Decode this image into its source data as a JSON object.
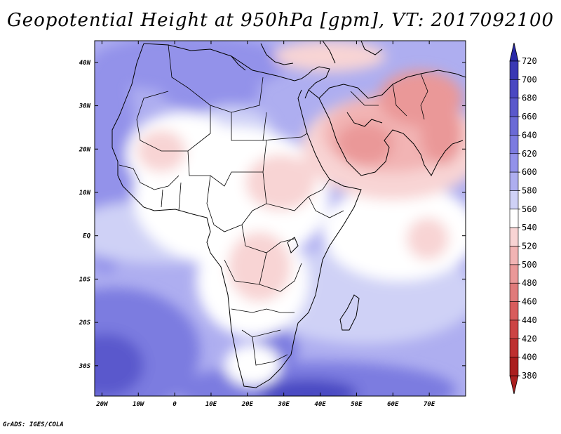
{
  "title": "Geopotential Height at 950hPa [gpm], VT: 2017092100",
  "credit": "GrADS: IGES/COLA",
  "map": {
    "lon_labels": [
      "20W",
      "10W",
      "0",
      "10E",
      "20E",
      "30E",
      "40E",
      "50E",
      "60E",
      "70E"
    ],
    "lat_labels": [
      "40N",
      "30N",
      "20N",
      "10N",
      "EQ",
      "10S",
      "20S",
      "30S"
    ],
    "lon_range": [
      -22,
      80
    ],
    "lat_range": [
      -37,
      45
    ]
  },
  "colorbar": {
    "levels": [
      "720",
      "700",
      "680",
      "660",
      "640",
      "620",
      "600",
      "580",
      "560",
      "540",
      "520",
      "500",
      "480",
      "460",
      "440",
      "420",
      "400",
      "380"
    ],
    "colors": [
      "#2a2aa8",
      "#3a38b4",
      "#4a48c2",
      "#5a58cc",
      "#6b6ad6",
      "#7c7be0",
      "#9392ea",
      "#aeaef0",
      "#cfd1f6",
      "#ffffff",
      "#f8d4d4",
      "#f2b4b4",
      "#ea9898",
      "#e07a7a",
      "#d85c5c",
      "#cc4444",
      "#be3030",
      "#aa1e1e"
    ]
  }
}
